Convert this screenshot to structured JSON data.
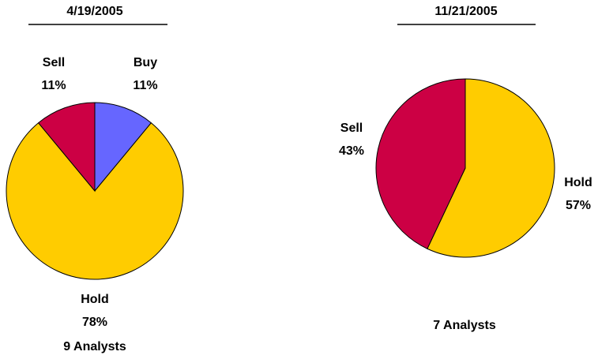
{
  "chart_data": [
    {
      "type": "pie",
      "title": "4/19/2005",
      "categories": [
        "Buy",
        "Hold",
        "Sell"
      ],
      "values": [
        11,
        78,
        11
      ],
      "value_labels": [
        "11%",
        "78%",
        "11%"
      ],
      "colors": [
        "#6666ff",
        "#ffcc00",
        "#cc0044"
      ],
      "annotation": "9 Analysts"
    },
    {
      "type": "pie",
      "title": "11/21/2005",
      "categories": [
        "Hold",
        "Sell"
      ],
      "values": [
        57,
        43
      ],
      "value_labels": [
        "57%",
        "43%"
      ],
      "colors": [
        "#ffcc00",
        "#cc0044"
      ],
      "annotation": "7 Analysts"
    }
  ]
}
